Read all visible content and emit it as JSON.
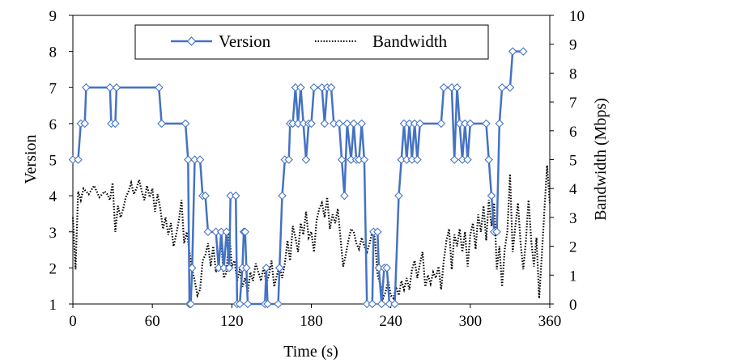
{
  "chart_data": {
    "type": "line",
    "xlabel": "Time (s)",
    "ylabel_left": "Version",
    "ylabel_right": "Bandwidth (Mbps)",
    "xlim": [
      0,
      360
    ],
    "ylim_left": [
      1,
      9
    ],
    "ylim_right": [
      0,
      10
    ],
    "x_ticks": [
      "0",
      "60",
      "120",
      "180",
      "240",
      "300",
      "360"
    ],
    "y_left_ticks": [
      "1",
      "2",
      "3",
      "4",
      "5",
      "6",
      "7",
      "8",
      "9"
    ],
    "y_right_ticks": [
      "0",
      "1",
      "2",
      "3",
      "4",
      "5",
      "6",
      "7",
      "8",
      "9",
      "10"
    ],
    "legend_position": "top-center",
    "grid": false,
    "series": [
      {
        "name": "Version",
        "axis": "left",
        "style": "solid line with diamond markers",
        "color": "#4472C4",
        "points": [
          [
            0,
            5
          ],
          [
            4,
            5
          ],
          [
            6,
            6
          ],
          [
            9,
            6
          ],
          [
            10,
            7
          ],
          [
            28,
            7
          ],
          [
            29,
            6
          ],
          [
            32,
            6
          ],
          [
            33,
            7
          ],
          [
            65,
            7
          ],
          [
            67,
            6
          ],
          [
            85,
            6
          ],
          [
            87,
            5
          ],
          [
            88,
            1
          ],
          [
            89,
            1
          ],
          [
            90,
            2
          ],
          [
            92,
            5
          ],
          [
            96,
            5
          ],
          [
            98,
            4
          ],
          [
            100,
            4
          ],
          [
            102,
            3
          ],
          [
            108,
            3
          ],
          [
            110,
            2
          ],
          [
            112,
            3
          ],
          [
            114,
            2
          ],
          [
            116,
            3
          ],
          [
            118,
            2
          ],
          [
            119,
            4
          ],
          [
            123,
            4
          ],
          [
            124,
            1
          ],
          [
            126,
            1
          ],
          [
            128,
            2
          ],
          [
            129,
            3
          ],
          [
            130,
            3
          ],
          [
            131,
            2
          ],
          [
            132,
            1
          ],
          [
            145,
            1
          ],
          [
            146,
            2
          ],
          [
            147,
            1
          ],
          [
            155,
            1
          ],
          [
            156,
            2
          ],
          [
            158,
            4
          ],
          [
            160,
            5
          ],
          [
            163,
            5
          ],
          [
            164,
            6
          ],
          [
            166,
            6
          ],
          [
            168,
            7
          ],
          [
            170,
            6
          ],
          [
            172,
            7
          ],
          [
            174,
            6
          ],
          [
            176,
            5
          ],
          [
            178,
            6
          ],
          [
            180,
            6
          ],
          [
            182,
            7
          ],
          [
            188,
            7
          ],
          [
            190,
            6
          ],
          [
            192,
            7
          ],
          [
            195,
            7
          ],
          [
            197,
            6
          ],
          [
            201,
            6
          ],
          [
            203,
            5
          ],
          [
            205,
            4
          ],
          [
            207,
            6
          ],
          [
            210,
            5
          ],
          [
            212,
            6
          ],
          [
            214,
            5
          ],
          [
            216,
            5
          ],
          [
            218,
            6
          ],
          [
            220,
            5
          ],
          [
            222,
            1
          ],
          [
            226,
            1
          ],
          [
            227,
            3
          ],
          [
            230,
            3
          ],
          [
            231,
            2
          ],
          [
            233,
            1
          ],
          [
            235,
            2
          ],
          [
            237,
            2
          ],
          [
            239,
            1
          ],
          [
            243,
            1
          ],
          [
            246,
            4
          ],
          [
            248,
            5
          ],
          [
            250,
            6
          ],
          [
            252,
            5
          ],
          [
            254,
            6
          ],
          [
            256,
            5
          ],
          [
            258,
            6
          ],
          [
            260,
            5
          ],
          [
            262,
            6
          ],
          [
            278,
            6
          ],
          [
            280,
            7
          ],
          [
            286,
            7
          ],
          [
            288,
            5
          ],
          [
            290,
            7
          ],
          [
            292,
            6
          ],
          [
            294,
            5
          ],
          [
            296,
            6
          ],
          [
            298,
            5
          ],
          [
            300,
            6
          ],
          [
            312,
            6
          ],
          [
            314,
            5
          ],
          [
            316,
            4
          ],
          [
            318,
            3
          ],
          [
            320,
            3
          ],
          [
            322,
            6
          ],
          [
            324,
            7
          ],
          [
            330,
            7
          ],
          [
            332,
            8
          ],
          [
            340,
            8
          ]
        ]
      },
      {
        "name": "Bandwidth",
        "axis": "right",
        "style": "dotted line",
        "color": "#000000",
        "points": [
          [
            0,
            3
          ],
          [
            2,
            1.2
          ],
          [
            4,
            3.9
          ],
          [
            6,
            3.6
          ],
          [
            8,
            4
          ],
          [
            12,
            3.8
          ],
          [
            16,
            4.1
          ],
          [
            20,
            3.7
          ],
          [
            24,
            3.9
          ],
          [
            26,
            3.8
          ],
          [
            28,
            3.6
          ],
          [
            30,
            4.2
          ],
          [
            32,
            2.5
          ],
          [
            34,
            3.4
          ],
          [
            36,
            3
          ],
          [
            38,
            3.3
          ],
          [
            40,
            3.7
          ],
          [
            42,
            3.9
          ],
          [
            44,
            4.2
          ],
          [
            46,
            3.8
          ],
          [
            48,
            4
          ],
          [
            50,
            4.3
          ],
          [
            52,
            3.9
          ],
          [
            54,
            3.6
          ],
          [
            56,
            4.1
          ],
          [
            58,
            3.7
          ],
          [
            60,
            4
          ],
          [
            62,
            3.2
          ],
          [
            64,
            3.8
          ],
          [
            66,
            3.3
          ],
          [
            68,
            2.6
          ],
          [
            70,
            3
          ],
          [
            72,
            2.4
          ],
          [
            74,
            2.8
          ],
          [
            76,
            2
          ],
          [
            78,
            2.4
          ],
          [
            80,
            2.9
          ],
          [
            82,
            3.6
          ],
          [
            84,
            2.1
          ],
          [
            86,
            2.5
          ],
          [
            88,
            1.8
          ],
          [
            90,
            1.2
          ],
          [
            92,
            0.8
          ],
          [
            94,
            0.3
          ],
          [
            96,
            0.5
          ],
          [
            98,
            1.5
          ],
          [
            100,
            1.7
          ],
          [
            102,
            2.1
          ],
          [
            104,
            1.3
          ],
          [
            106,
            2
          ],
          [
            108,
            1.1
          ],
          [
            110,
            1.4
          ],
          [
            112,
            2.2
          ],
          [
            114,
            0.9
          ],
          [
            116,
            1.1
          ],
          [
            118,
            2.5
          ],
          [
            120,
            1.3
          ],
          [
            122,
            1.5
          ],
          [
            124,
            0.8
          ],
          [
            126,
            1.2
          ],
          [
            128,
            0.6
          ],
          [
            130,
            0.9
          ],
          [
            132,
            0.4
          ],
          [
            134,
            1.1
          ],
          [
            136,
            0.8
          ],
          [
            138,
            1.4
          ],
          [
            140,
            1.1
          ],
          [
            142,
            0.8
          ],
          [
            144,
            1.3
          ],
          [
            146,
            0.7
          ],
          [
            148,
            1
          ],
          [
            150,
            1.5
          ],
          [
            152,
            0.6
          ],
          [
            154,
            1
          ],
          [
            156,
            1.3
          ],
          [
            158,
            0.9
          ],
          [
            160,
            1.4
          ],
          [
            162,
            2.2
          ],
          [
            164,
            1.5
          ],
          [
            166,
            2.7
          ],
          [
            168,
            2.3
          ],
          [
            170,
            1.8
          ],
          [
            172,
            2.8
          ],
          [
            174,
            2.4
          ],
          [
            176,
            3.2
          ],
          [
            178,
            2.3
          ],
          [
            180,
            2.5
          ],
          [
            182,
            1.8
          ],
          [
            184,
            2.9
          ],
          [
            186,
            3.3
          ],
          [
            188,
            3.5
          ],
          [
            190,
            3
          ],
          [
            192,
            3.7
          ],
          [
            194,
            2.6
          ],
          [
            196,
            3.1
          ],
          [
            198,
            2.8
          ],
          [
            200,
            3.3
          ],
          [
            202,
            2.3
          ],
          [
            204,
            1.3
          ],
          [
            206,
            1.7
          ],
          [
            208,
            2.2
          ],
          [
            210,
            2.6
          ],
          [
            212,
            2.5
          ],
          [
            214,
            2.1
          ],
          [
            216,
            1.9
          ],
          [
            218,
            2.3
          ],
          [
            220,
            2
          ],
          [
            222,
            1.8
          ],
          [
            224,
            2.1
          ],
          [
            226,
            2.5
          ],
          [
            228,
            2.3
          ],
          [
            230,
            1
          ],
          [
            232,
            0.7
          ],
          [
            234,
            0.2
          ],
          [
            236,
            0.4
          ],
          [
            238,
            0.8
          ],
          [
            240,
            0.3
          ],
          [
            242,
            0.2
          ],
          [
            244,
            0.6
          ],
          [
            246,
            0.3
          ],
          [
            248,
            0.8
          ],
          [
            250,
            0.5
          ],
          [
            252,
            0.9
          ],
          [
            254,
            0.5
          ],
          [
            256,
            1.2
          ],
          [
            258,
            1.5
          ],
          [
            260,
            0.9
          ],
          [
            262,
            1.4
          ],
          [
            264,
            1.8
          ],
          [
            266,
            0.6
          ],
          [
            268,
            1
          ],
          [
            270,
            0.7
          ],
          [
            272,
            1.1
          ],
          [
            274,
            0.9
          ],
          [
            276,
            1.3
          ],
          [
            278,
            0.5
          ],
          [
            280,
            1.5
          ],
          [
            282,
            2.2
          ],
          [
            284,
            2.6
          ],
          [
            286,
            1.2
          ],
          [
            288,
            2.4
          ],
          [
            290,
            2
          ],
          [
            292,
            2.6
          ],
          [
            294,
            1.8
          ],
          [
            296,
            2.5
          ],
          [
            298,
            1.3
          ],
          [
            300,
            2.4
          ],
          [
            302,
            2.8
          ],
          [
            304,
            1.9
          ],
          [
            306,
            3.1
          ],
          [
            308,
            2.5
          ],
          [
            310,
            3.4
          ],
          [
            312,
            2.2
          ],
          [
            314,
            3.6
          ],
          [
            316,
            2.7
          ],
          [
            318,
            3.5
          ],
          [
            320,
            1.2
          ],
          [
            322,
            2
          ],
          [
            324,
            0.6
          ],
          [
            326,
            1.9
          ],
          [
            328,
            2.5
          ],
          [
            330,
            4.5
          ],
          [
            332,
            1.8
          ],
          [
            334,
            2.7
          ],
          [
            336,
            3.5
          ],
          [
            338,
            2.1
          ],
          [
            340,
            1.2
          ],
          [
            342,
            2.2
          ],
          [
            344,
            3.6
          ],
          [
            346,
            2.2
          ],
          [
            348,
            1.3
          ],
          [
            350,
            2.3
          ],
          [
            352,
            0.2
          ],
          [
            354,
            1.7
          ],
          [
            356,
            3.3
          ],
          [
            358,
            4.8
          ],
          [
            360,
            3.5
          ]
        ]
      }
    ]
  }
}
